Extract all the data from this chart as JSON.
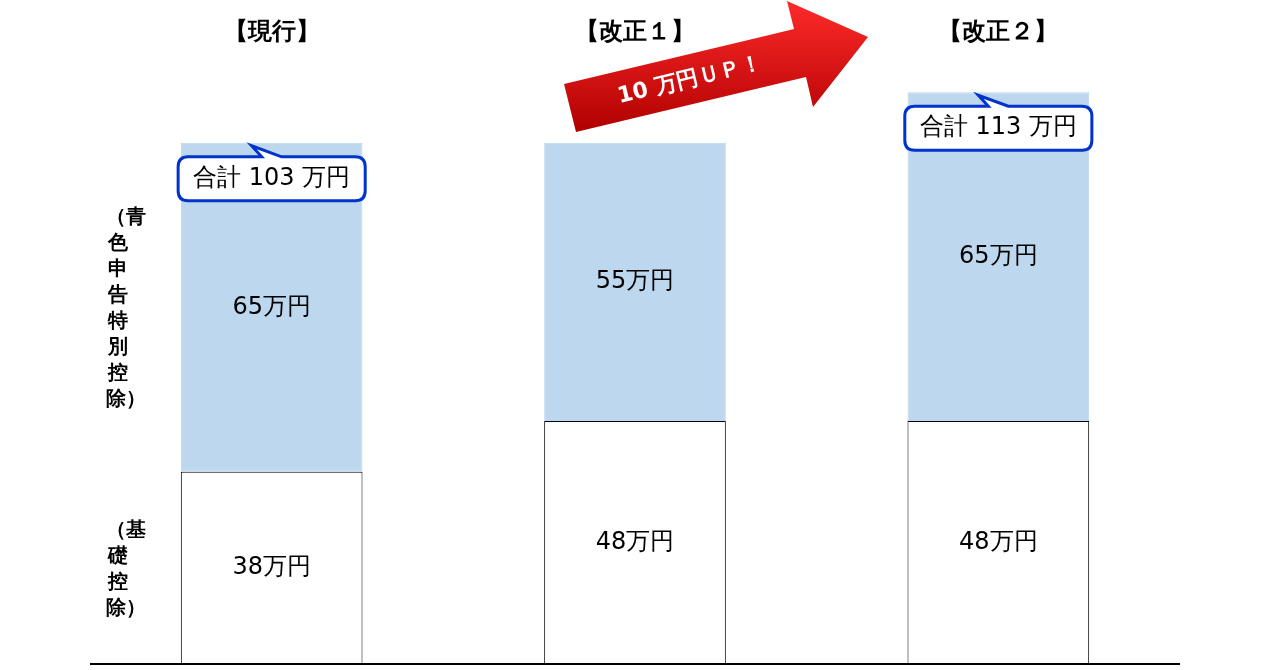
{
  "chart_data": {
    "type": "bar",
    "stacked": true,
    "categories": [
      "【現行】",
      "【改正１】",
      "【改正２】"
    ],
    "series": [
      {
        "name": "（基礎控除）",
        "color": "#ffffff",
        "values": [
          38,
          48,
          48
        ],
        "value_labels": [
          "38万円",
          "48万円",
          "48万円"
        ]
      },
      {
        "name": "（青色申告特別控除）",
        "color": "#bdd7ee",
        "values": [
          65,
          55,
          65
        ],
        "value_labels": [
          "65万円",
          "55万円",
          "65万円"
        ]
      }
    ],
    "totals": [
      "合計 103 万円",
      null,
      "合計 113 万円"
    ],
    "annotations": [
      "10 万円ＵＰ！"
    ],
    "tick_labels": "x",
    "grid": false,
    "legend": false
  }
}
